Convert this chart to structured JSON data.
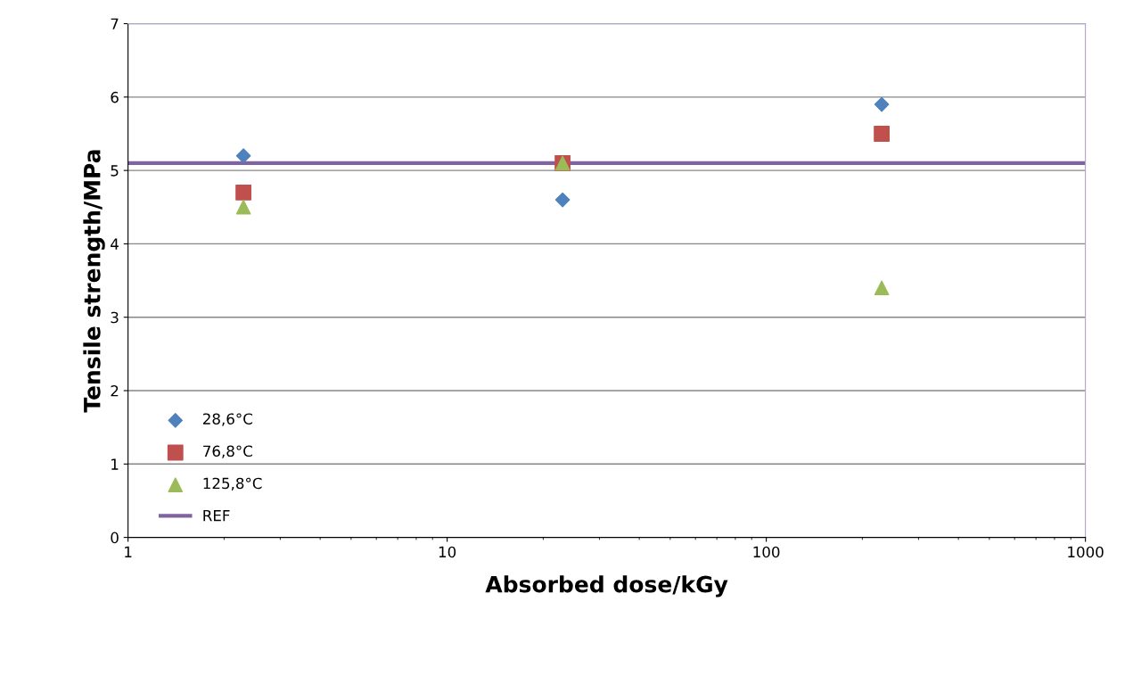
{
  "chart_data": {
    "type": "scatter",
    "xlabel": "Absorbed dose/kGy",
    "ylabel": "Tensile strength/MPa",
    "log": "x",
    "xlim": [
      1,
      1000
    ],
    "xticks": [
      1,
      10,
      100,
      1000
    ],
    "ylim": [
      0,
      7
    ],
    "yticks": [
      0,
      1,
      2,
      3,
      4,
      5,
      6,
      7
    ],
    "grid": "y",
    "legend": "bottom left",
    "series": [
      {
        "name": "28,6°C",
        "color": "#4f81bd",
        "marker": "diamond",
        "x": [
          2.3,
          23,
          230
        ],
        "values": [
          5.2,
          4.6,
          5.9
        ]
      },
      {
        "name": "76,8°C",
        "color": "#c0504d",
        "marker": "square",
        "x": [
          2.3,
          23,
          230
        ],
        "values": [
          4.7,
          5.1,
          5.5
        ]
      },
      {
        "name": "125,8°C",
        "color": "#9bbb59",
        "marker": "triangle",
        "x": [
          2.3,
          23,
          230
        ],
        "values": [
          4.5,
          5.1,
          3.4
        ]
      },
      {
        "name": "REF",
        "type": "line",
        "color": "#8064a2",
        "marker": "none",
        "x": [
          1,
          1000
        ],
        "values": [
          5.1,
          5.1
        ]
      }
    ]
  }
}
